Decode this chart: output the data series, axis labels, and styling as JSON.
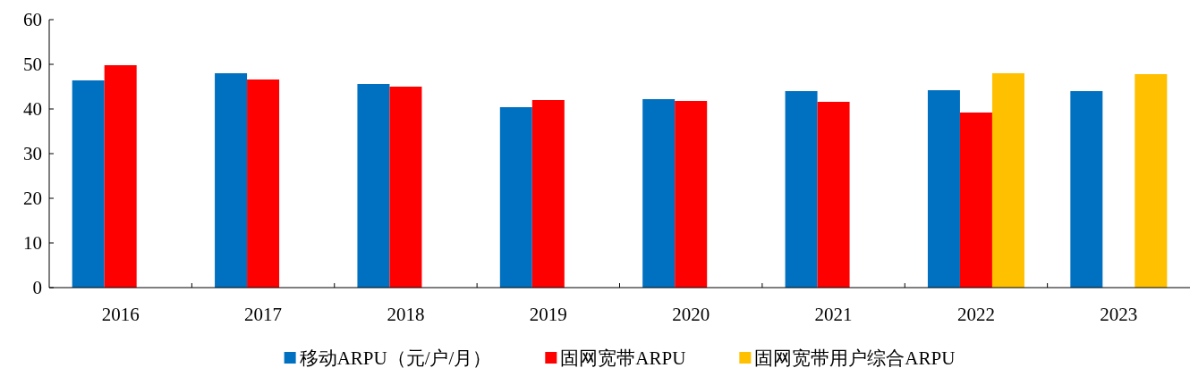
{
  "chart_data": {
    "type": "bar",
    "categories": [
      "2016",
      "2017",
      "2018",
      "2019",
      "2020",
      "2021",
      "2022",
      "2023"
    ],
    "series": [
      {
        "name": "移动ARPU（元/户/月）",
        "color": "#0070c0",
        "values": [
          46.4,
          48.0,
          45.6,
          40.4,
          42.2,
          44.0,
          44.2,
          44.0
        ]
      },
      {
        "name": "固网宽带ARPU",
        "color": "#ff0000",
        "values": [
          49.8,
          46.6,
          45.0,
          42.0,
          41.8,
          41.6,
          39.2,
          null
        ]
      },
      {
        "name": "固网宽带用户综合ARPU",
        "color": "#ffc000",
        "values": [
          null,
          null,
          null,
          null,
          null,
          null,
          48.0,
          47.8
        ]
      }
    ],
    "ylim": [
      0,
      60
    ],
    "yticks": [
      0,
      10,
      20,
      30,
      40,
      50,
      60
    ],
    "legend": "bottom",
    "grid": false
  }
}
